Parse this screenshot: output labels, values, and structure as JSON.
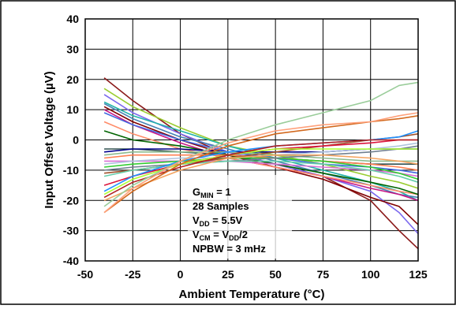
{
  "chart_data": {
    "type": "line",
    "xlabel": "Ambient Temperature (°C)",
    "ylabel": "Input Offset Voltage (µV)",
    "xlim": [
      -50,
      125
    ],
    "ylim": [
      -40,
      40
    ],
    "x_ticks": [
      -50,
      -25,
      0,
      25,
      50,
      75,
      100,
      125
    ],
    "y_ticks": [
      40,
      30,
      20,
      10,
      0,
      -10,
      -20,
      -30,
      -40
    ],
    "x_tick_labels": [
      "-50",
      "-25",
      "0",
      "25",
      "50",
      "75",
      "100",
      "125"
    ],
    "y_tick_labels": [
      "40",
      "30",
      "20",
      "10",
      "0",
      "-10",
      "-20",
      "-30",
      "-40"
    ],
    "grid": true,
    "annotation": [
      {
        "main": "G",
        "sub": "MIN",
        "rest": " = 1"
      },
      {
        "main": "28 Samples",
        "sub": "",
        "rest": ""
      },
      {
        "main": "V",
        "sub": "DD",
        "rest": " = 5.5V"
      },
      {
        "main": "V",
        "sub": "CM",
        "rest": " = V",
        "sub2": "DD",
        "rest2": "/2"
      },
      {
        "main": "NPBW = 3 mHz",
        "sub": "",
        "rest": ""
      }
    ],
    "x": [
      -40,
      -25,
      0,
      25,
      50,
      75,
      100,
      115,
      125
    ],
    "series": [
      {
        "color": "#8b1a1a",
        "values": [
          20.5,
          13,
          2,
          -5,
          -8,
          -12,
          -20,
          -30,
          -36
        ]
      },
      {
        "color": "#9acd32",
        "values": [
          17,
          11,
          4,
          -2,
          -5,
          -8,
          -12,
          -14,
          -16
        ]
      },
      {
        "color": "#7b68ee",
        "values": [
          15,
          9,
          2,
          -4,
          -8,
          -12,
          -17,
          -24,
          -31
        ]
      },
      {
        "color": "#20b2aa",
        "values": [
          12.5,
          8,
          3,
          -2,
          -6,
          -10,
          -14,
          -17,
          -20
        ]
      },
      {
        "color": "#4682b4",
        "values": [
          12,
          7,
          1,
          -3,
          -7,
          -11,
          -15,
          -18,
          -19
        ]
      },
      {
        "color": "#800000",
        "values": [
          11,
          6,
          0,
          -5,
          -9,
          -13,
          -19,
          -22,
          -28
        ]
      },
      {
        "color": "#c71585",
        "values": [
          10,
          5,
          -1,
          -6,
          -9,
          -12,
          -16,
          -18,
          -20
        ]
      },
      {
        "color": "#4169e1",
        "values": [
          9,
          5,
          0,
          -4,
          -6,
          -8,
          -9,
          -10,
          -11
        ]
      },
      {
        "color": "#ff8c69",
        "values": [
          6,
          2,
          -3,
          -6,
          -9,
          -12,
          -15,
          -17,
          -18
        ]
      },
      {
        "color": "#006400",
        "values": [
          3,
          0,
          -2,
          -5,
          -8,
          -11,
          -14,
          -16,
          -18
        ]
      },
      {
        "color": "#2f4f4f",
        "values": [
          -3,
          -3,
          -4,
          -5,
          -6,
          -7,
          -8,
          -8,
          -8
        ]
      },
      {
        "color": "#00008b",
        "values": [
          -4,
          -3,
          -3,
          -4,
          -4,
          -4,
          -3,
          -3,
          -3
        ]
      },
      {
        "color": "#8fbc8f",
        "values": [
          -5,
          -4,
          -4,
          -4,
          -5,
          -6,
          -7,
          -7,
          -7
        ]
      },
      {
        "color": "#ff7f50",
        "values": [
          -6,
          -5,
          -5,
          -5,
          -6,
          -7,
          -8,
          -9,
          -10
        ]
      },
      {
        "color": "#da70d6",
        "values": [
          -7,
          -7,
          -7,
          -7,
          -8,
          -9,
          -10,
          -11,
          -12
        ]
      },
      {
        "color": "#b0c4de",
        "values": [
          -8,
          -7,
          -6,
          -6,
          -5,
          -4,
          -3,
          -2,
          -1
        ]
      },
      {
        "color": "#32cd32",
        "values": [
          -9,
          -8,
          -7,
          -6,
          -6,
          -7,
          -9,
          -11,
          -13
        ]
      },
      {
        "color": "#708090",
        "values": [
          -10,
          -9,
          -8,
          -7,
          -6,
          -5,
          -4,
          -3,
          -2
        ]
      },
      {
        "color": "#a0522d",
        "values": [
          -11,
          -10,
          -8,
          -6,
          -4,
          -2,
          0,
          1,
          2
        ]
      },
      {
        "color": "#66cdaa",
        "values": [
          -12,
          -10,
          -8,
          -7,
          -7,
          -8,
          -10,
          -12,
          -14
        ]
      },
      {
        "color": "#dc143c",
        "values": [
          -15,
          -12,
          -8,
          -5,
          -3,
          -2,
          -1,
          0,
          0
        ]
      },
      {
        "color": "#1e90ff",
        "values": [
          -17,
          -12,
          -7,
          -4,
          -2,
          -1,
          0,
          1,
          3
        ]
      },
      {
        "color": "#adff2f",
        "values": [
          -18,
          -13,
          -8,
          -5,
          -3,
          -3,
          -3,
          -3,
          -3
        ]
      },
      {
        "color": "#b22222",
        "values": [
          -19,
          -14,
          -9,
          -5,
          -2,
          -1,
          0,
          0,
          0
        ]
      },
      {
        "color": "#f4a460",
        "values": [
          -20,
          -16,
          -10,
          -6,
          -5,
          -5,
          -6,
          -7,
          -8
        ]
      },
      {
        "color": "#9acd9a",
        "values": [
          -22,
          -15,
          -7,
          0,
          5,
          9,
          13,
          18,
          19
        ]
      },
      {
        "color": "#d2691e",
        "values": [
          -24,
          -17,
          -8,
          -2,
          2,
          4,
          6,
          7,
          8
        ]
      },
      {
        "color": "#ffa07a",
        "values": [
          -24,
          -16,
          -7,
          -1,
          3,
          5,
          6,
          8,
          9
        ]
      }
    ]
  }
}
